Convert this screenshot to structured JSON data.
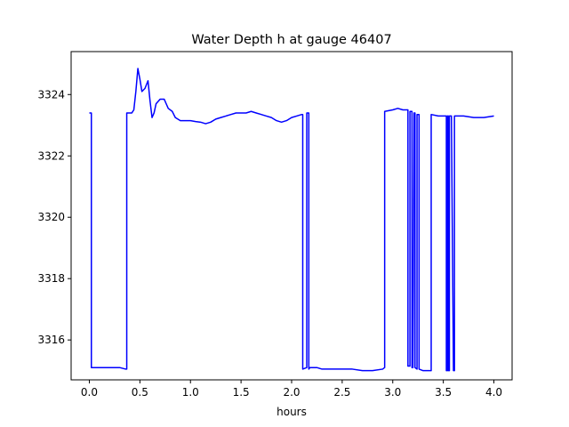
{
  "chart_data": {
    "type": "line",
    "title": "Water Depth h at gauge 46407",
    "xlabel": "hours",
    "ylabel": "",
    "xlim": [
      -0.18,
      4.18
    ],
    "ylim": [
      3314.7,
      3325.4
    ],
    "xticks": [
      0.0,
      0.5,
      1.0,
      1.5,
      2.0,
      2.5,
      3.0,
      3.5,
      4.0
    ],
    "xtick_labels": [
      "0.0",
      "0.5",
      "1.0",
      "1.5",
      "2.0",
      "2.5",
      "3.0",
      "3.5",
      "4.0"
    ],
    "yticks": [
      3316,
      3318,
      3320,
      3322,
      3324
    ],
    "ytick_labels": [
      "3316",
      "3318",
      "3320",
      "3322",
      "3324"
    ],
    "grid": false,
    "legend": "none",
    "series": [
      {
        "color": "#0000ff",
        "x": [
          0.0,
          0.01,
          0.02,
          0.02,
          0.1,
          0.2,
          0.25,
          0.3,
          0.36,
          0.37,
          0.37,
          0.42,
          0.44,
          0.46,
          0.48,
          0.5,
          0.52,
          0.55,
          0.58,
          0.6,
          0.62,
          0.64,
          0.66,
          0.7,
          0.74,
          0.76,
          0.78,
          0.82,
          0.85,
          0.9,
          0.95,
          1.0,
          1.05,
          1.1,
          1.15,
          1.2,
          1.25,
          1.3,
          1.35,
          1.4,
          1.45,
          1.5,
          1.55,
          1.6,
          1.65,
          1.7,
          1.75,
          1.8,
          1.85,
          1.9,
          1.95,
          2.0,
          2.05,
          2.1,
          2.11,
          2.11,
          2.15,
          2.15,
          2.16,
          2.17,
          2.17,
          2.18,
          2.2,
          2.25,
          2.3,
          2.35,
          2.4,
          2.5,
          2.6,
          2.7,
          2.8,
          2.9,
          2.92,
          2.92,
          3.0,
          3.05,
          3.1,
          3.14,
          3.15,
          3.15,
          3.17,
          3.17,
          3.19,
          3.19,
          3.2,
          3.21,
          3.22,
          3.22,
          3.24,
          3.24,
          3.26,
          3.26,
          3.3,
          3.36,
          3.38,
          3.38,
          3.45,
          3.5,
          3.53,
          3.53,
          3.54,
          3.54,
          3.55,
          3.55,
          3.56,
          3.56,
          3.58,
          3.6,
          3.61,
          3.61,
          3.7,
          3.8,
          3.9,
          4.0
        ],
        "y": [
          3323.4,
          3323.4,
          3323.4,
          3315.1,
          3315.1,
          3315.1,
          3315.1,
          3315.1,
          3315.05,
          3315.05,
          3323.4,
          3323.4,
          3323.5,
          3324.1,
          3324.85,
          3324.5,
          3324.1,
          3324.2,
          3324.45,
          3323.8,
          3323.25,
          3323.4,
          3323.7,
          3323.85,
          3323.85,
          3323.7,
          3323.55,
          3323.45,
          3323.25,
          3323.15,
          3323.15,
          3323.15,
          3323.12,
          3323.1,
          3323.05,
          3323.1,
          3323.2,
          3323.25,
          3323.3,
          3323.35,
          3323.4,
          3323.4,
          3323.4,
          3323.45,
          3323.4,
          3323.35,
          3323.3,
          3323.25,
          3323.15,
          3323.1,
          3323.15,
          3323.25,
          3323.3,
          3323.35,
          3323.35,
          3315.05,
          3315.1,
          3323.4,
          3323.4,
          3323.4,
          3315.05,
          3315.1,
          3315.1,
          3315.1,
          3315.05,
          3315.05,
          3315.05,
          3315.05,
          3315.05,
          3315.0,
          3315.0,
          3315.05,
          3315.1,
          3323.45,
          3323.5,
          3323.55,
          3323.5,
          3323.5,
          3323.5,
          3315.15,
          3315.15,
          3323.45,
          3323.45,
          3315.1,
          3315.1,
          3323.4,
          3323.4,
          3315.1,
          3315.05,
          3323.35,
          3323.35,
          3315.05,
          3315.0,
          3315.0,
          3315.0,
          3323.35,
          3323.3,
          3323.3,
          3323.3,
          3315.0,
          3315.0,
          3323.3,
          3323.3,
          3315.0,
          3315.0,
          3323.3,
          3323.3,
          3315.0,
          3315.0,
          3323.3,
          3323.3,
          3323.25,
          3323.25,
          3323.3
        ]
      }
    ]
  }
}
